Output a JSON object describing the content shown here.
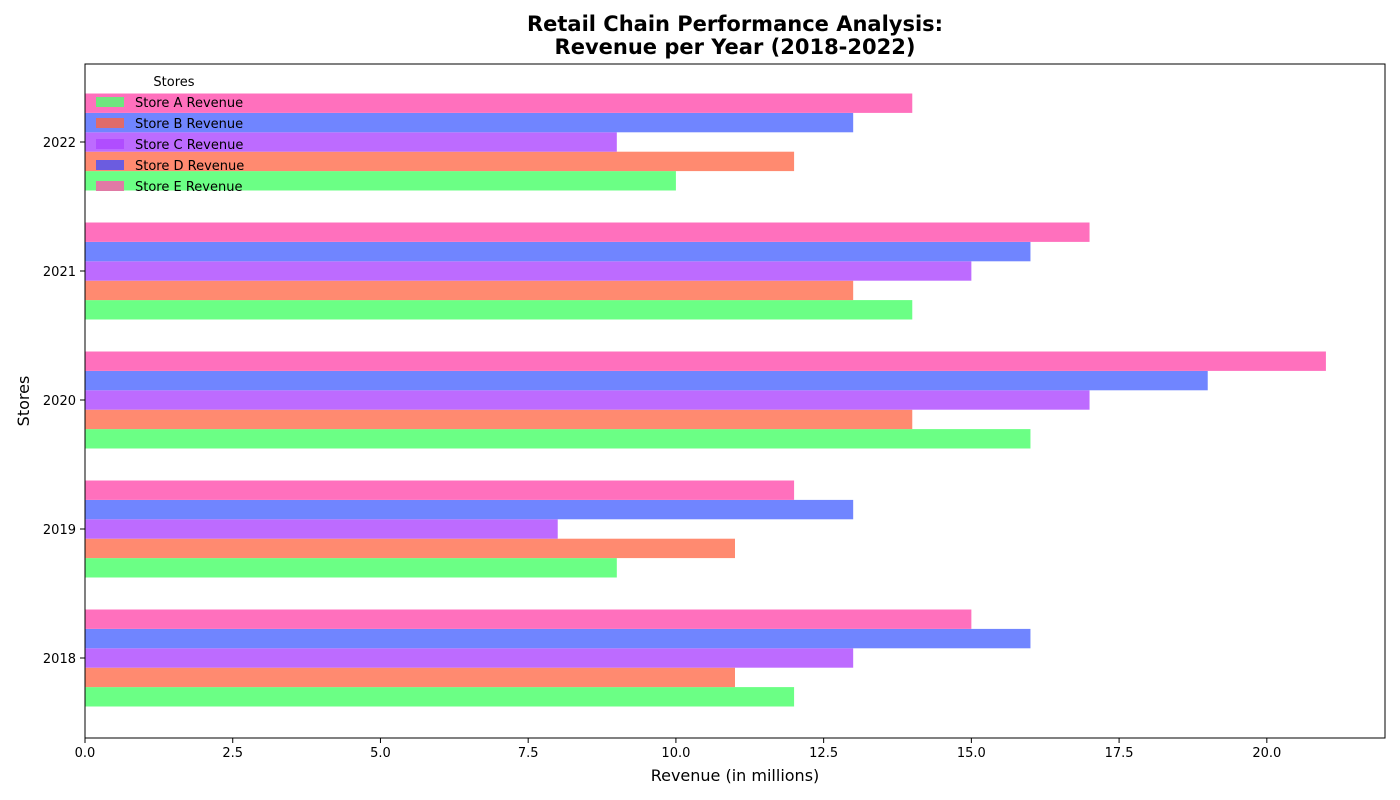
{
  "chart_data": {
    "type": "bar",
    "orientation": "horizontal",
    "title_line1": "Retail Chain Performance Analysis:",
    "title_line2": "Revenue per Year (2018-2022)",
    "xlabel": "Revenue (in millions)",
    "ylabel": "Stores",
    "xlim": [
      0,
      22
    ],
    "xticks": [
      "0.0",
      "2.5",
      "5.0",
      "7.5",
      "10.0",
      "12.5",
      "15.0",
      "17.5",
      "20.0"
    ],
    "xtick_values": [
      0,
      2.5,
      5,
      7.5,
      10,
      12.5,
      15,
      17.5,
      20
    ],
    "categories": [
      "2018",
      "2019",
      "2020",
      "2021",
      "2022"
    ],
    "series": [
      {
        "name": "Store A Revenue",
        "color": "#6bff85",
        "legend_color": "#6fe57f",
        "values": [
          12,
          9,
          16,
          14,
          10
        ]
      },
      {
        "name": "Store B Revenue",
        "color": "#ff8a70",
        "legend_color": "#e06b6b",
        "values": [
          11,
          11,
          14,
          13,
          12
        ]
      },
      {
        "name": "Store C Revenue",
        "color": "#bd6bff",
        "legend_color": "#b04dff",
        "values": [
          13,
          8,
          17,
          15,
          9
        ]
      },
      {
        "name": "Store D Revenue",
        "color": "#7085ff",
        "legend_color": "#6b5ce0",
        "values": [
          16,
          13,
          19,
          16,
          13
        ]
      },
      {
        "name": "Store E Revenue",
        "color": "#ff70bd",
        "legend_color": "#e07aa5",
        "values": [
          15,
          12,
          21,
          17,
          14
        ]
      }
    ],
    "legend": {
      "title": "Stores",
      "placement": "top-left"
    },
    "grid": false
  }
}
